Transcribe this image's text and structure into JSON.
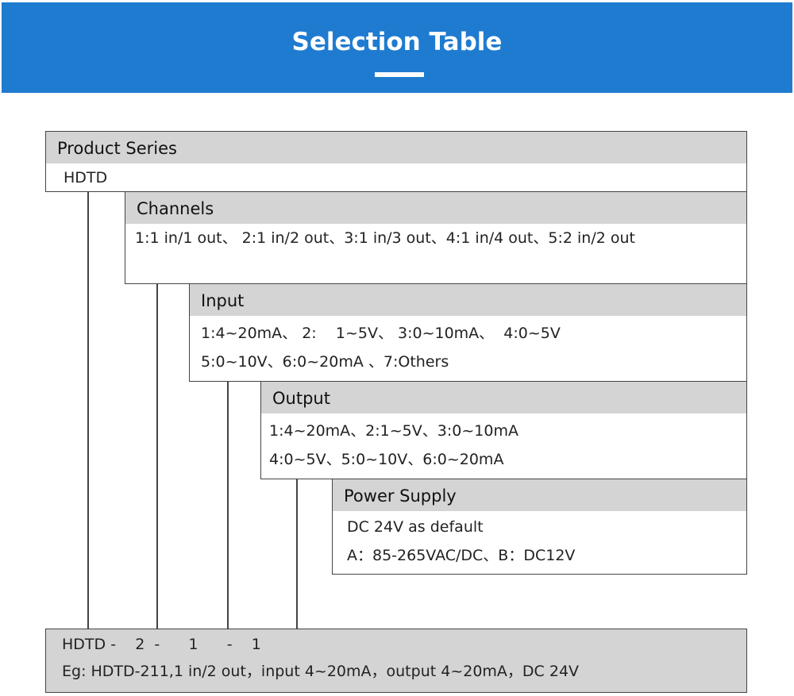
{
  "header": {
    "title": "Selection Table",
    "color": "#1f7bd0"
  },
  "sections": [
    {
      "title": "Product Series",
      "lines": [
        "HDTD"
      ]
    },
    {
      "title": "Channels",
      "lines": [
        "1:1 in/1 out、 2:1 in/2 out、3:1 in/3 out、4:1 in/4 out、5:2 in/2 out"
      ]
    },
    {
      "title": "Input",
      "lines": [
        "1:4~20mA、 2:    1~5V、 3:0~10mA、  4:0~5V",
        "5:0~10V、6:0~20mA 、7:Others"
      ]
    },
    {
      "title": "Output",
      "lines": [
        "1:4~20mA、2:1~5V、3:0~10mA",
        "4:0~5V、5:0~10V、6:0~20mA"
      ]
    },
    {
      "title": "Power Supply",
      "lines": [
        "DC 24V as default",
        "A：85-265VAC/DC、B：DC12V"
      ]
    }
  ],
  "example": {
    "code": "HDTD -    2  -      1      -    1",
    "text": "Eg: HDTD-211,1 in/2 out，input 4~20mA，output 4~20mA，DC 24V"
  }
}
